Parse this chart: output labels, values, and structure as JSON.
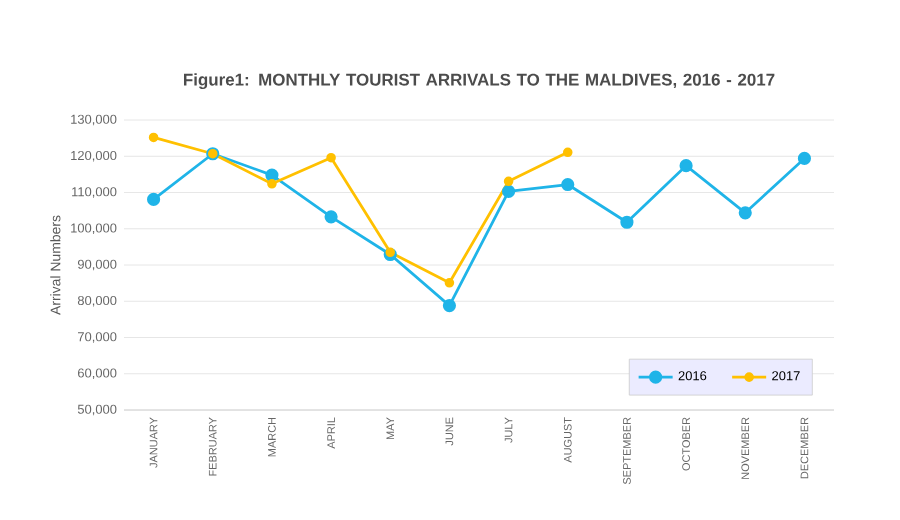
{
  "chart_data": {
    "type": "line",
    "title": "Figure1: MONTHLY TOURIST ARRIVALS TO THE MALDIVES, 2016 - 2017",
    "ylabel": "Arrival Numbers",
    "categories": [
      "JANUARY",
      "FEBRUARY",
      "MARCH",
      "APRIL",
      "MAY",
      "JUNE",
      "JULY",
      "AUGUST",
      "SEPTEMBER",
      "OCTOBER",
      "NOVEMBER",
      "DECEMBER"
    ],
    "series": [
      {
        "name": "2016",
        "color": "#1fb4e8",
        "values": [
          108100,
          120700,
          114800,
          103300,
          92900,
          78800,
          110300,
          112200,
          101800,
          117400,
          104400,
          119400
        ]
      },
      {
        "name": "2017",
        "color": "#ffc000",
        "values": [
          125200,
          120700,
          112400,
          119600,
          93500,
          85100,
          113100,
          121100,
          null,
          null,
          null,
          null
        ]
      }
    ],
    "ylim": [
      50000,
      130000
    ],
    "yticks": [
      {
        "value": 50000,
        "label": "50,000"
      },
      {
        "value": 60000,
        "label": "60,000"
      },
      {
        "value": 70000,
        "label": "70,000"
      },
      {
        "value": 80000,
        "label": "80,000"
      },
      {
        "value": 90000,
        "label": "90,000"
      },
      {
        "value": 100000,
        "label": "100,000"
      },
      {
        "value": 110000,
        "label": "110,000"
      },
      {
        "value": 120000,
        "label": "120,000"
      },
      {
        "value": 130000,
        "label": "130,000"
      }
    ],
    "grid": "y",
    "legend": "bottom right",
    "marker": "circle",
    "line_style": "solid"
  }
}
